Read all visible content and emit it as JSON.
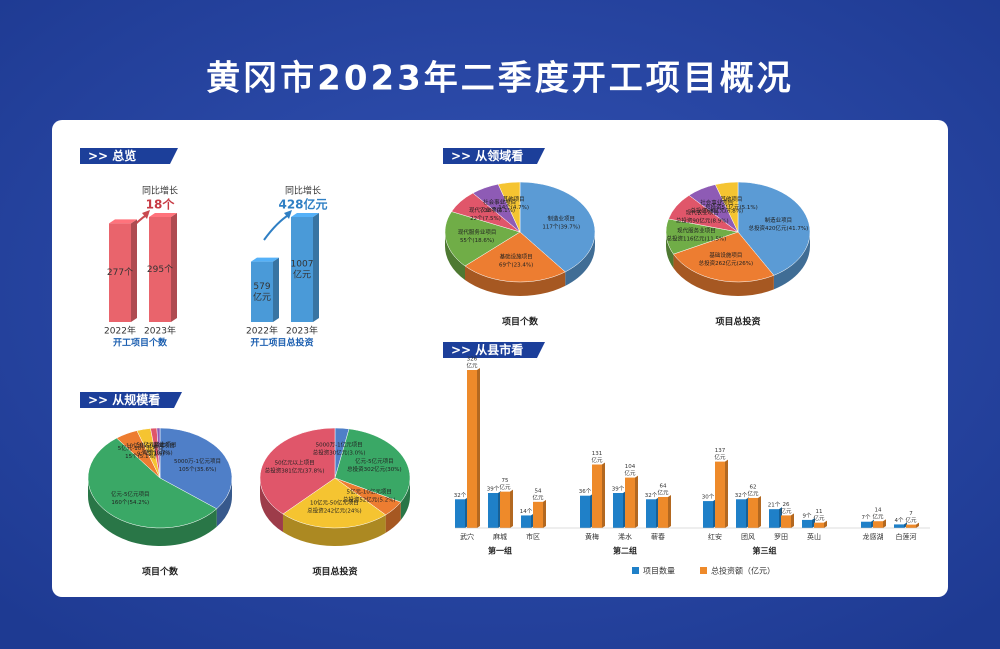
{
  "title": "黄冈市2023年二季度开工项目概况",
  "sections": [
    ">> 总览",
    ">> 从领域看",
    ">> 从规模看",
    ">> 从县市看"
  ],
  "chart_data": [
    {
      "type": "bar",
      "categories": [
        "2022年",
        "2023年"
      ],
      "values": [
        277,
        295
      ],
      "value_labels": [
        [
          "277个"
        ],
        [
          "295个"
        ]
      ],
      "color": "#e9646c",
      "xlabel": "开工项目个数",
      "annotation": "同比增长",
      "annotation_value": "18个"
    },
    {
      "type": "bar",
      "categories": [
        "2022年",
        "2023年"
      ],
      "values": [
        579,
        1007
      ],
      "value_labels": [
        [
          "579",
          "亿元"
        ],
        [
          "1007",
          "亿元"
        ]
      ],
      "color": "#4a9ad8",
      "xlabel": "开工项目总投资",
      "annotation": "同比增长",
      "annotation_value": "428亿元"
    },
    {
      "type": "pie",
      "xlabel": "项目个数",
      "categories": [
        "制造业项目",
        "基础设施项目",
        "现代服务业项目",
        "现代农业项目",
        "社会事业项目",
        "其他项目"
      ],
      "values": [
        39.7,
        23.4,
        18.6,
        7.5,
        6.1,
        4.7
      ],
      "value_labels": [
        "117个(39.7%)",
        "69个(23.4%)",
        "55个(18.6%)",
        "22个(7.5%)",
        "18个(6.1%)",
        "14个(4.7%)"
      ],
      "colors": [
        "#5b9bd5",
        "#ed7d31",
        "#70ad47",
        "#e0566a",
        "#8e5bb5",
        "#f5c431"
      ]
    },
    {
      "type": "pie",
      "xlabel": "项目总投资",
      "categories": [
        "制造业项目",
        "基础设施项目",
        "现代服务业项目",
        "现代农业项目",
        "社会事业项目",
        "其他项目"
      ],
      "values": [
        41.7,
        26,
        11.5,
        8.9,
        6.8,
        5.1
      ],
      "value_labels": [
        "总投资420亿元(41.7%)",
        "总投资262亿元(26%)",
        "总投资116亿元(11.5%)",
        "总投资90亿元(8.9%)",
        "总投资68亿元(6.8%)",
        "总投资51亿元(5.1%)"
      ],
      "colors": [
        "#5b9bd5",
        "#ed7d31",
        "#70ad47",
        "#e0566a",
        "#8e5bb5",
        "#f5c431"
      ]
    },
    {
      "type": "pie",
      "xlabel": "项目个数",
      "categories": [
        "5000万-1亿元项目",
        "亿元-5亿元项目",
        "5亿元-10亿元项目",
        "10亿元-50亿元项目",
        "50亿元以上项目",
        "其他"
      ],
      "values": [
        35.6,
        54.2,
        5.1,
        3.1,
        1.4,
        0.7
      ],
      "value_labels": [
        "105个(35.6%)",
        "160个(54.2%)",
        "15个(5.1%)",
        "9个(3.1%)",
        "4个(1.4%)",
        "2个(0.7%)"
      ],
      "colors": [
        "#4f7fc8",
        "#3aa866",
        "#ed7d31",
        "#f5c431",
        "#e0566a",
        "#8e5bb5"
      ]
    },
    {
      "type": "pie",
      "xlabel": "项目总投资",
      "categories": [
        "5000万-1亿元项目",
        "亿元-5亿元项目",
        "5亿元-10亿元项目",
        "10亿元-50亿元项目",
        "50亿元以上项目"
      ],
      "values": [
        3.0,
        30.0,
        5.2,
        24.0,
        37.8
      ],
      "value_labels": [
        "总投资30亿元(3.0%)",
        "总投资302亿元(30%)",
        "总投资52亿元(5.2%)",
        "总投资242亿元(24%)",
        "总投资381亿元(37.8%)"
      ],
      "colors": [
        "#4f7fc8",
        "#3aa866",
        "#ed7d31",
        "#f5c431",
        "#e0566a"
      ]
    },
    {
      "type": "grouped-bar",
      "categories": [
        "武穴",
        "麻城",
        "市区",
        "黄梅",
        "浠水",
        "蕲春",
        "红安",
        "团风",
        "罗田",
        "英山",
        "龙感湖",
        "白莲河"
      ],
      "groups": [
        "第一组",
        "第二组",
        "第三组"
      ],
      "series": [
        {
          "name": "项目数量",
          "color": "#1f80c8",
          "values": [
            32,
            39,
            14,
            36,
            39,
            32,
            30,
            32,
            21,
            9,
            7,
            4
          ],
          "value_labels": [
            [
              "32个"
            ],
            [
              "39个"
            ],
            [
              "14个"
            ],
            [
              "36个"
            ],
            [
              "39个"
            ],
            [
              "32个"
            ],
            [
              "30个"
            ],
            [
              "32个"
            ],
            [
              "21个"
            ],
            [
              "9个"
            ],
            [
              "7个"
            ],
            [
              "4个"
            ]
          ]
        },
        {
          "name": "总投资额（亿元）",
          "color": "#ee8a2a",
          "values": [
            326,
            75,
            54,
            131,
            104,
            64,
            137,
            62,
            26,
            11,
            14,
            7
          ],
          "value_labels": [
            [
              "326",
              "亿元"
            ],
            [
              "75",
              "亿元"
            ],
            [
              "54",
              "亿元"
            ],
            [
              "131",
              "亿元"
            ],
            [
              "104",
              "亿元"
            ],
            [
              "64",
              "亿元"
            ],
            [
              "137",
              "亿元"
            ],
            [
              "62",
              "亿元"
            ],
            [
              "26",
              "亿元"
            ],
            [
              "11",
              "亿元"
            ],
            [
              "14",
              "亿元"
            ],
            [
              "7",
              "亿元"
            ]
          ]
        }
      ]
    }
  ]
}
